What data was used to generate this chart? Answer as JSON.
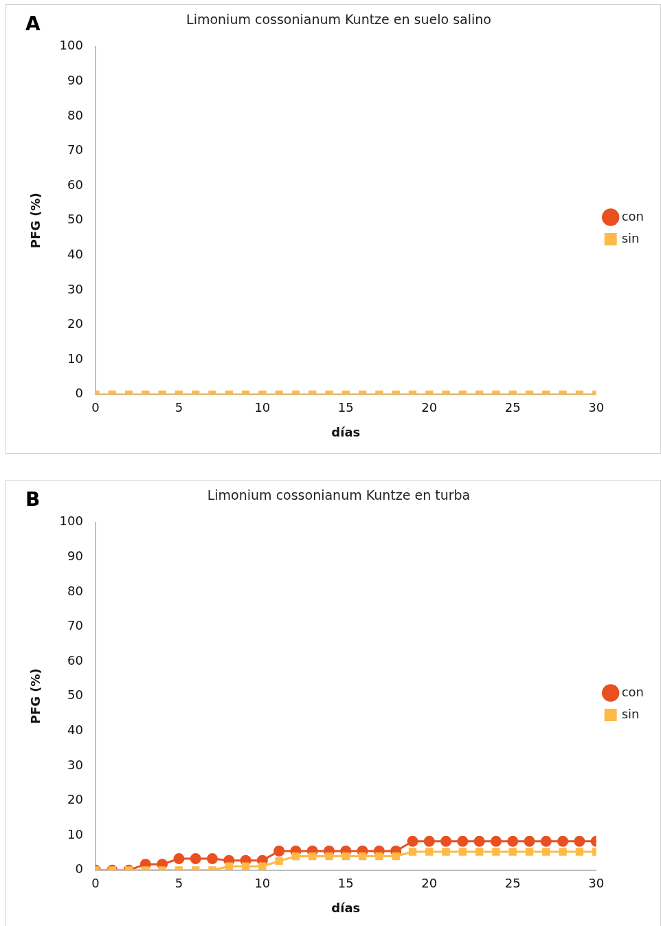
{
  "chart_data": [
    {
      "type": "line",
      "title": "Limonium cossonianum Kuntze en suelo salino",
      "xlabel": "días",
      "ylabel": "PFG (%)",
      "annotations": [
        "A"
      ],
      "x": [
        0,
        1,
        2,
        3,
        4,
        5,
        6,
        7,
        8,
        9,
        10,
        11,
        12,
        13,
        14,
        15,
        16,
        17,
        18,
        19,
        20,
        21,
        22,
        23,
        24,
        25,
        26,
        27,
        28,
        29,
        30
      ],
      "series": [
        {
          "name": "con",
          "color": "#e9501f",
          "marker": "circle",
          "values": [
            null,
            null,
            null,
            null,
            null,
            null,
            null,
            null,
            null,
            null,
            null,
            null,
            null,
            null,
            null,
            null,
            null,
            null,
            null,
            null,
            null,
            null,
            null,
            null,
            null,
            null,
            null,
            null,
            null,
            null,
            null
          ]
        },
        {
          "name": "sin",
          "color": "#ffb946",
          "marker": "square",
          "values": [
            0,
            0,
            0,
            0,
            0,
            0,
            0,
            0,
            0,
            0,
            0,
            0,
            0,
            0,
            0,
            0,
            0,
            0,
            0,
            0,
            0,
            0,
            0,
            0,
            0,
            0,
            0,
            0,
            0,
            0,
            0
          ]
        }
      ],
      "xlim": [
        0,
        30
      ],
      "xticks": [
        0,
        5,
        10,
        15,
        20,
        25,
        30
      ],
      "ylim": [
        0,
        100
      ],
      "yticks": [
        0,
        10,
        20,
        30,
        40,
        50,
        60,
        70,
        80,
        90,
        100
      ],
      "grid": false,
      "legend": "right",
      "line_style": "solid"
    },
    {
      "type": "line",
      "title": "Limonium cossonianum Kuntze en turba",
      "xlabel": "días",
      "ylabel": "PFG (%)",
      "annotations": [
        "B"
      ],
      "x": [
        0,
        1,
        2,
        3,
        4,
        5,
        6,
        7,
        8,
        9,
        10,
        11,
        12,
        13,
        14,
        15,
        16,
        17,
        18,
        19,
        20,
        21,
        22,
        23,
        24,
        25,
        26,
        27,
        28,
        29,
        30
      ],
      "series": [
        {
          "name": "con",
          "color": "#e9501f",
          "marker": "circle",
          "values": [
            0,
            0,
            0,
            1.7,
            1.7,
            3.3,
            3.3,
            3.3,
            2.8,
            2.8,
            2.8,
            5.5,
            5.5,
            5.5,
            5.5,
            5.5,
            5.5,
            5.5,
            5.5,
            8.3,
            8.3,
            8.3,
            8.3,
            8.3,
            8.3,
            8.3,
            8.3,
            8.3,
            8.3,
            8.3,
            8.3
          ]
        },
        {
          "name": "sin",
          "color": "#ffb946",
          "marker": "square",
          "values": [
            0,
            0,
            0,
            0,
            0,
            0,
            0,
            0,
            1.1,
            1.1,
            1.1,
            2.6,
            4,
            4,
            4,
            4,
            4,
            4,
            4,
            5.3,
            5.3,
            5.3,
            5.3,
            5.3,
            5.3,
            5.3,
            5.3,
            5.3,
            5.3,
            5.3,
            5.3
          ]
        }
      ],
      "xlim": [
        0,
        30
      ],
      "xticks": [
        0,
        5,
        10,
        15,
        20,
        25,
        30
      ],
      "ylim": [
        0,
        100
      ],
      "yticks": [
        0,
        10,
        20,
        30,
        40,
        50,
        60,
        70,
        80,
        90,
        100
      ],
      "grid": false,
      "legend": "right",
      "line_style": "solid"
    }
  ]
}
